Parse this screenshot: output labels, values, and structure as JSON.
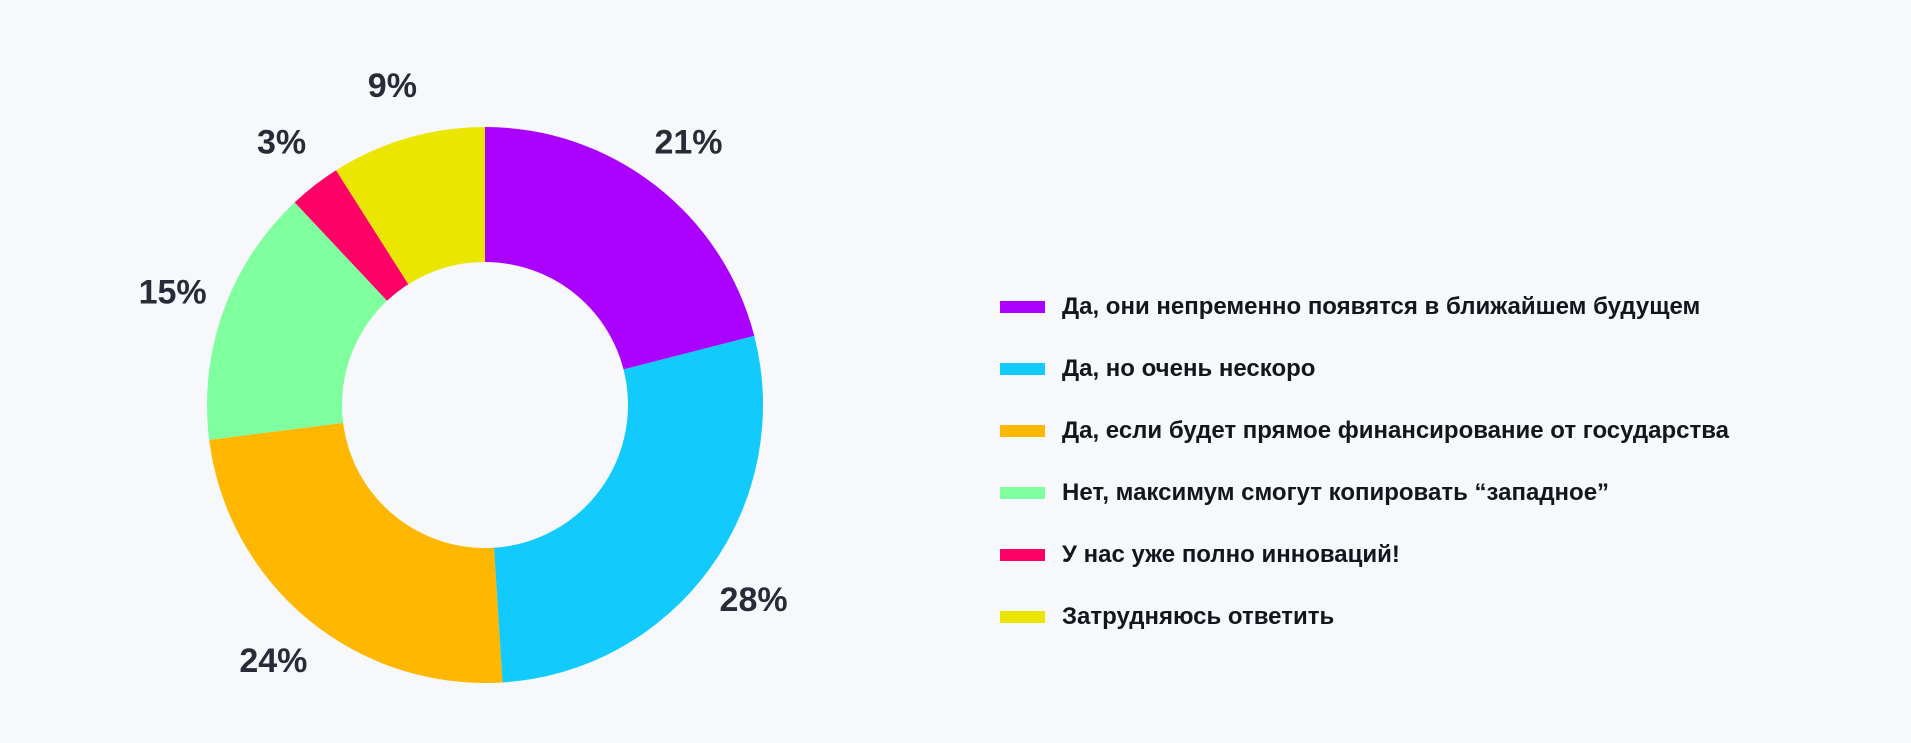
{
  "chart_data": {
    "type": "pie",
    "donut": true,
    "legend_position": "right",
    "slices": [
      {
        "label": "Да, они непременно появятся в ближайшем будущем",
        "value": 21,
        "value_label": "21%",
        "color": "#aa00ff"
      },
      {
        "label": "Да, но очень нескоро",
        "value": 28,
        "value_label": "28%",
        "color": "#12cbfc"
      },
      {
        "label": "Да, если будет прямое финансирование от государства",
        "value": 24,
        "value_label": "24%",
        "color": "#ffb700"
      },
      {
        "label": "Нет, максимум смогут копировать “западное”",
        "value": 15,
        "value_label": "15%",
        "color": "#80ff9e"
      },
      {
        "label": "У нас уже полно инноваций!",
        "value": 3,
        "value_label": "3%",
        "color": "#ff0066"
      },
      {
        "label": "Затрудняюсь ответить",
        "value": 9,
        "value_label": "9%",
        "color": "#ebe600"
      }
    ]
  }
}
